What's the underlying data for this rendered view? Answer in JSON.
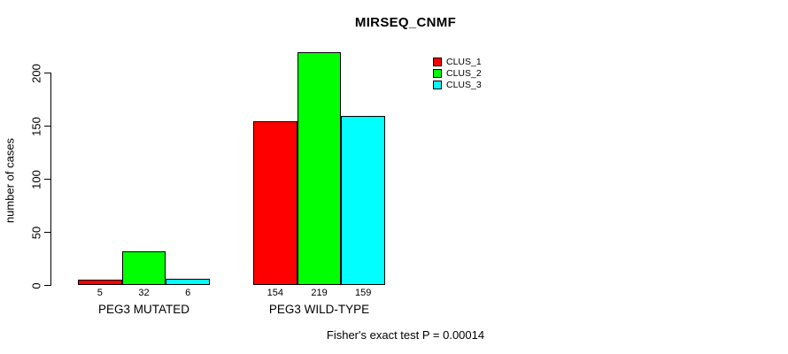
{
  "chart_data": {
    "type": "bar",
    "title": "MIRSEQ_CNMF",
    "ylabel": "number of cases",
    "xlabel": "",
    "categories": [
      "PEG3 MUTATED",
      "PEG3 WILD-TYPE"
    ],
    "series": [
      {
        "name": "CLUS_1",
        "color": "#ff0000",
        "values": [
          5,
          154
        ]
      },
      {
        "name": "CLUS_2",
        "color": "#00ff00",
        "values": [
          32,
          219
        ]
      },
      {
        "name": "CLUS_3",
        "color": "#00ffff",
        "values": [
          6,
          159
        ]
      }
    ],
    "yticks": [
      0,
      50,
      100,
      150,
      200
    ],
    "ylim": [
      0,
      220
    ],
    "show_bar_values": true,
    "grid": false,
    "legend_position": "top-right",
    "annotation": "Fisher's exact test P = 0.00014",
    "colors": {
      "background": "#ffffff",
      "axis": "#000000",
      "text": "#000000",
      "bar_border": "#000000"
    }
  }
}
